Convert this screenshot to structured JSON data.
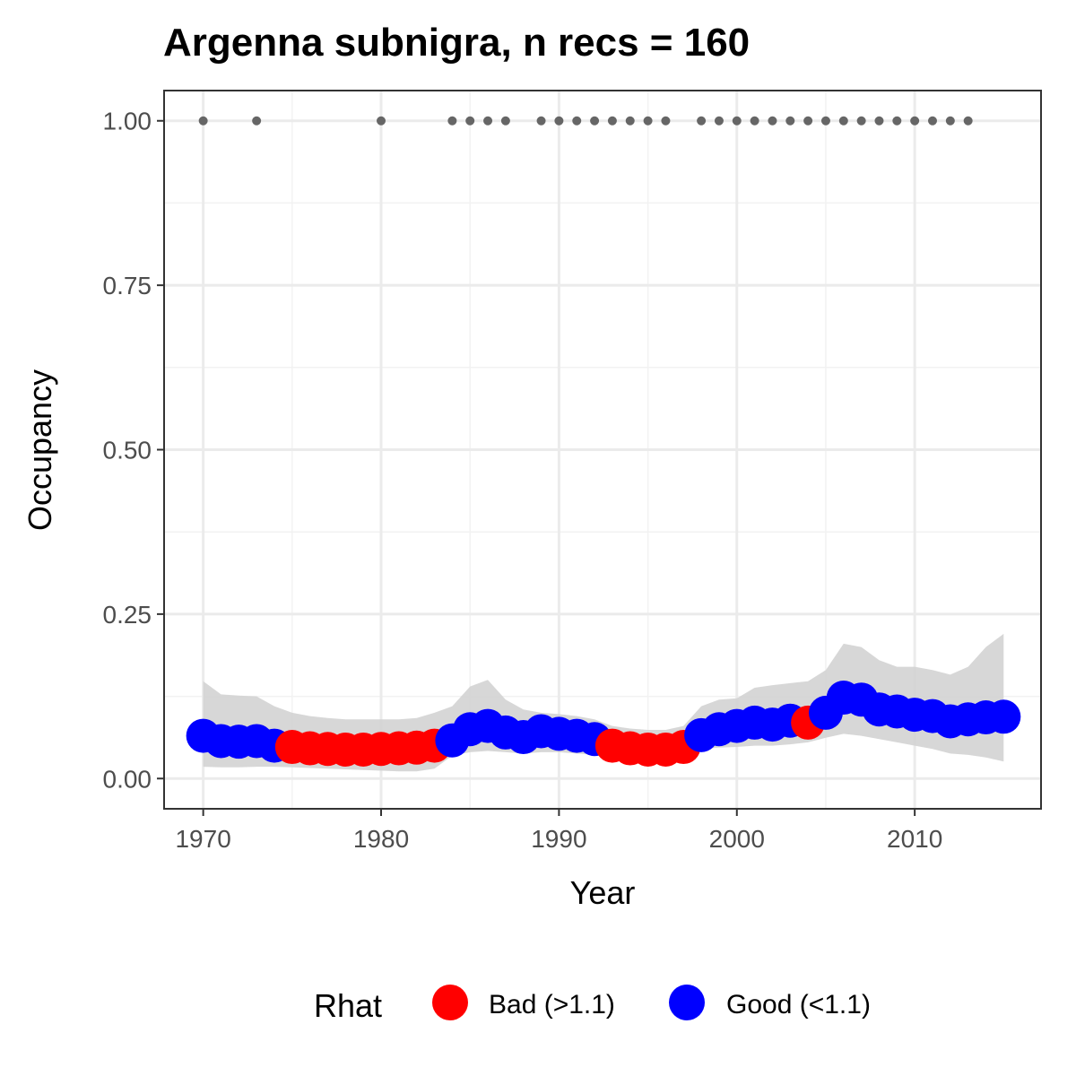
{
  "chart_data": {
    "type": "line",
    "title": "Argenna subnigra, n recs = 160",
    "xlabel": "Year",
    "ylabel": "Occupancy",
    "xlim": [
      1967.8,
      2017.1
    ],
    "ylim": [
      -0.046,
      1.046
    ],
    "x_ticks": [
      1970,
      1980,
      1990,
      2000,
      2010
    ],
    "x_tick_labels": [
      "1970",
      "1980",
      "1990",
      "2000",
      "2010"
    ],
    "y_ticks": [
      0.0,
      0.25,
      0.5,
      0.75,
      1.0
    ],
    "y_tick_labels": [
      "0.00",
      "0.25",
      "0.50",
      "0.75",
      "1.00"
    ],
    "grid": true,
    "legend": {
      "title": "Rhat",
      "position": "bottom",
      "entries": [
        {
          "label": "Bad (>1.1)",
          "color": "#ff0000"
        },
        {
          "label": "Good (<1.1)",
          "color": "#0000ff"
        }
      ]
    },
    "colors": {
      "bad": "#ff0000",
      "good": "#0000ff",
      "observed": "#666666",
      "ribbon": "#d3d3d3"
    },
    "series": [
      {
        "type": "points",
        "x": [
          1970,
          1971,
          1972,
          1973,
          1974,
          1975,
          1976,
          1977,
          1978,
          1979,
          1980,
          1981,
          1982,
          1983,
          1984,
          1985,
          1986,
          1987,
          1988,
          1989,
          1990,
          1991,
          1992,
          1993,
          1994,
          1995,
          1996,
          1997,
          1998,
          1999,
          2000,
          2001,
          2002,
          2003,
          2004,
          2005,
          2006,
          2007,
          2008,
          2009,
          2010,
          2011,
          2012,
          2013,
          2014,
          2015
        ],
        "y": [
          0.065,
          0.057,
          0.056,
          0.057,
          0.05,
          0.048,
          0.046,
          0.045,
          0.044,
          0.044,
          0.045,
          0.046,
          0.047,
          0.05,
          0.058,
          0.075,
          0.08,
          0.07,
          0.063,
          0.072,
          0.068,
          0.065,
          0.06,
          0.05,
          0.046,
          0.044,
          0.044,
          0.048,
          0.066,
          0.075,
          0.08,
          0.085,
          0.082,
          0.088,
          0.085,
          0.1,
          0.123,
          0.12,
          0.105,
          0.102,
          0.097,
          0.095,
          0.087,
          0.09,
          0.093,
          0.094
        ],
        "rhat": [
          "Good",
          "Good",
          "Good",
          "Good",
          "Good",
          "Bad",
          "Bad",
          "Bad",
          "Bad",
          "Bad",
          "Bad",
          "Bad",
          "Bad",
          "Bad",
          "Good",
          "Good",
          "Good",
          "Good",
          "Good",
          "Good",
          "Good",
          "Good",
          "Good",
          "Bad",
          "Bad",
          "Bad",
          "Bad",
          "Bad",
          "Good",
          "Good",
          "Good",
          "Good",
          "Good",
          "Good",
          "Bad",
          "Good",
          "Good",
          "Good",
          "Good",
          "Good",
          "Good",
          "Good",
          "Good",
          "Good",
          "Good",
          "Good"
        ],
        "lower": [
          0.018,
          0.017,
          0.017,
          0.018,
          0.018,
          0.017,
          0.016,
          0.015,
          0.014,
          0.013,
          0.012,
          0.011,
          0.011,
          0.015,
          0.035,
          0.04,
          0.042,
          0.04,
          0.038,
          0.04,
          0.04,
          0.038,
          0.036,
          0.03,
          0.025,
          0.022,
          0.022,
          0.028,
          0.045,
          0.047,
          0.048,
          0.05,
          0.05,
          0.052,
          0.055,
          0.062,
          0.068,
          0.065,
          0.06,
          0.055,
          0.05,
          0.045,
          0.038,
          0.036,
          0.032,
          0.026
        ],
        "upper": [
          0.148,
          0.128,
          0.126,
          0.125,
          0.11,
          0.1,
          0.095,
          0.092,
          0.09,
          0.09,
          0.09,
          0.09,
          0.092,
          0.1,
          0.11,
          0.14,
          0.15,
          0.12,
          0.105,
          0.1,
          0.098,
          0.095,
          0.09,
          0.08,
          0.076,
          0.074,
          0.074,
          0.08,
          0.11,
          0.12,
          0.122,
          0.138,
          0.142,
          0.145,
          0.148,
          0.165,
          0.205,
          0.2,
          0.18,
          0.17,
          0.17,
          0.165,
          0.158,
          0.17,
          0.2,
          0.22
        ]
      },
      {
        "type": "observed",
        "x": [
          1970,
          1973,
          1980,
          1984,
          1985,
          1986,
          1987,
          1989,
          1990,
          1991,
          1992,
          1993,
          1994,
          1995,
          1996,
          1998,
          1999,
          2000,
          2001,
          2002,
          2003,
          2004,
          2005,
          2006,
          2007,
          2008,
          2009,
          2010,
          2011,
          2012,
          2013
        ],
        "y": [
          1,
          1,
          1,
          1,
          1,
          1,
          1,
          1,
          1,
          1,
          1,
          1,
          1,
          1,
          1,
          1,
          1,
          1,
          1,
          1,
          1,
          1,
          1,
          1,
          1,
          1,
          1,
          1,
          1,
          1,
          1
        ]
      }
    ]
  }
}
